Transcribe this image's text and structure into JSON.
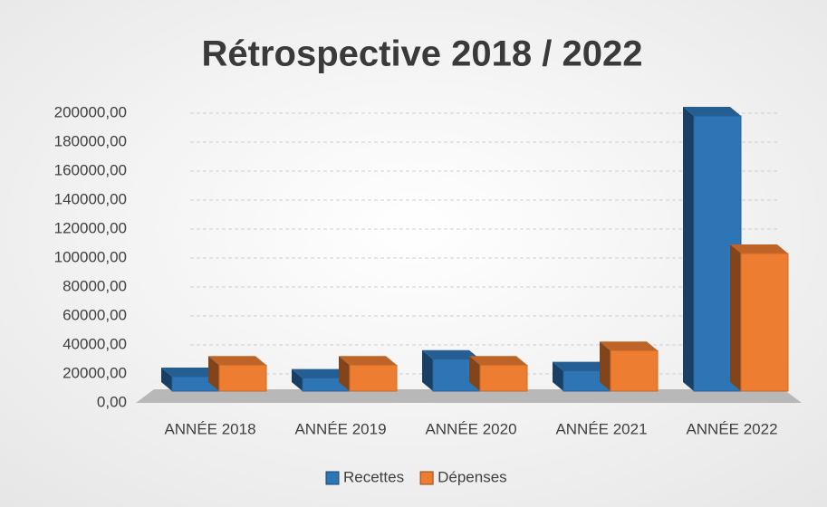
{
  "chart_data": {
    "type": "bar3d",
    "title": "Rétrospective 2018 / 2022",
    "categories": [
      "ANNÉE 2018",
      "ANNÉE 2019",
      "ANNÉE 2020",
      "ANNÉE 2021",
      "ANNÉE 2022"
    ],
    "series": [
      {
        "name": "Recettes",
        "color": "#2e75b6",
        "values": [
          10000,
          9000,
          22000,
          14000,
          190000
        ]
      },
      {
        "name": "Dépenses",
        "color": "#ed7d31",
        "values": [
          18000,
          18000,
          18000,
          28000,
          95000
        ]
      }
    ],
    "ylim": [
      0,
      200000
    ],
    "yticks": [
      {
        "value": 0,
        "label": "0,00"
      },
      {
        "value": 20000,
        "label": "20000,00"
      },
      {
        "value": 40000,
        "label": "40000,00"
      },
      {
        "value": 60000,
        "label": "60000,00"
      },
      {
        "value": 80000,
        "label": "80000,00"
      },
      {
        "value": 100000,
        "label": "100000,00"
      },
      {
        "value": 120000,
        "label": "120000,00"
      },
      {
        "value": 140000,
        "label": "140000,00"
      },
      {
        "value": 160000,
        "label": "160000,00"
      },
      {
        "value": 180000,
        "label": "180000,00"
      },
      {
        "value": 200000,
        "label": "200000,00"
      }
    ],
    "grid": true,
    "legend": "bottom"
  }
}
